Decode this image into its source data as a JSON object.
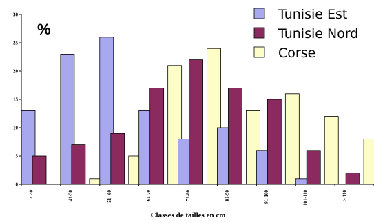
{
  "chart_data": {
    "type": "bar",
    "title": "",
    "unit_label": "%",
    "xlabel": "Classes de tailles en cm",
    "ylabel": "",
    "ylim": [
      0,
      30
    ],
    "yticks": [
      0,
      5,
      10,
      15,
      20,
      25,
      30
    ],
    "categories": [
      "< 40",
      "41-50",
      "51--60",
      "61-70",
      "71-80",
      "81-90",
      "91-100",
      "101-110",
      "> 110"
    ],
    "series": [
      {
        "name": "Tunisie Est",
        "color": "#a8a8ee",
        "values": [
          13,
          23,
          26,
          13,
          8,
          10,
          6,
          1,
          0
        ]
      },
      {
        "name": "Tunisie Nord",
        "color": "#8b2a5e",
        "values": [
          5,
          7,
          9,
          17,
          22,
          17,
          15,
          6,
          2
        ]
      },
      {
        "name": "Corse",
        "color": "#fdfdc8",
        "values": [
          0,
          1,
          5,
          21,
          24,
          13,
          16,
          12,
          8
        ]
      }
    ],
    "legend_position": "top-right",
    "grid": false
  }
}
